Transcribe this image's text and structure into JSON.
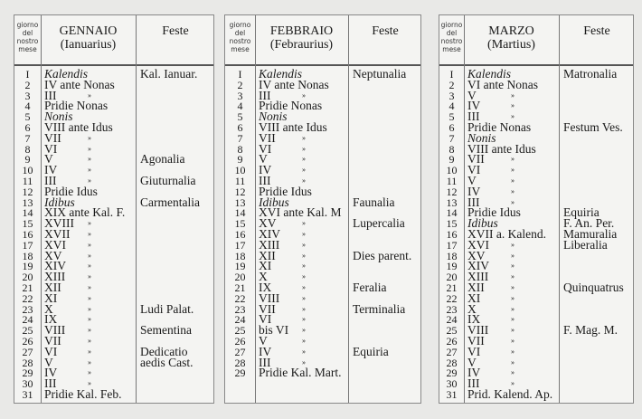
{
  "header_num_label": "giorno del nostro mese",
  "feste_label": "Feste",
  "ditto": "»",
  "months": [
    {
      "name": "GENNAIO",
      "latin": "(Ianuarius)",
      "rows": [
        [
          "I",
          "Kalendis",
          0,
          "Kal. Ianuar.",
          1
        ],
        [
          "2",
          "IV ante Nonas",
          0,
          "",
          0
        ],
        [
          "3",
          "III",
          1,
          "",
          0
        ],
        [
          "4",
          "Pridie Nonas",
          0,
          "",
          0
        ],
        [
          "5",
          "Nonis",
          0,
          "",
          1
        ],
        [
          "6",
          "VIII ante Idus",
          0,
          "",
          0
        ],
        [
          "7",
          "VII",
          1,
          "",
          0
        ],
        [
          "8",
          "VI",
          1,
          "",
          0
        ],
        [
          "9",
          "V",
          1,
          "Agonalia",
          0
        ],
        [
          "10",
          "IV",
          1,
          "",
          0
        ],
        [
          "11",
          "III",
          1,
          "Giuturnalia",
          0
        ],
        [
          "12",
          "Pridie Idus",
          0,
          "",
          0
        ],
        [
          "13",
          "Idibus",
          0,
          "Carmentalia",
          1
        ],
        [
          "14",
          "XIX ante Kal. F.",
          0,
          "",
          0
        ],
        [
          "15",
          "XVIII",
          1,
          "",
          0
        ],
        [
          "16",
          "XVII",
          1,
          "",
          0
        ],
        [
          "17",
          "XVI",
          1,
          "",
          0
        ],
        [
          "18",
          "XV",
          1,
          "",
          0
        ],
        [
          "19",
          "XIV",
          1,
          "",
          0
        ],
        [
          "20",
          "XIII",
          1,
          "",
          0
        ],
        [
          "21",
          "XII",
          1,
          "",
          0
        ],
        [
          "22",
          "XI",
          1,
          "",
          0
        ],
        [
          "23",
          "X",
          1,
          "Ludi Palat.",
          0
        ],
        [
          "24",
          "IX",
          1,
          "",
          0
        ],
        [
          "25",
          "VIII",
          1,
          "Sementina",
          0
        ],
        [
          "26",
          "VII",
          1,
          "",
          0
        ],
        [
          "27",
          "VI",
          1,
          "Dedicatio",
          0
        ],
        [
          "28",
          "V",
          1,
          "aedis Cast.",
          0
        ],
        [
          "29",
          "IV",
          1,
          "",
          0
        ],
        [
          "30",
          "III",
          1,
          "",
          0
        ],
        [
          "31",
          "Pridie Kal. Feb.",
          0,
          "",
          0
        ]
      ]
    },
    {
      "name": "FEBBRAIO",
      "latin": "(Febraurius)",
      "rows": [
        [
          "I",
          "Kalendis",
          0,
          "Neptunalia",
          1
        ],
        [
          "2",
          "IV ante Nonas",
          0,
          "",
          0
        ],
        [
          "3",
          "III",
          1,
          "",
          0
        ],
        [
          "4",
          "Pridie Nonas",
          0,
          "",
          0
        ],
        [
          "5",
          "Nonis",
          0,
          "",
          1
        ],
        [
          "6",
          "VIII ante Idus",
          0,
          "",
          0
        ],
        [
          "7",
          "VII",
          1,
          "",
          0
        ],
        [
          "8",
          "VI",
          1,
          "",
          0
        ],
        [
          "9",
          "V",
          1,
          "",
          0
        ],
        [
          "10",
          "IV",
          1,
          "",
          0
        ],
        [
          "11",
          "III",
          1,
          "",
          0
        ],
        [
          "12",
          "Pridie Idus",
          0,
          "",
          0
        ],
        [
          "13",
          "Idibus",
          0,
          "Faunalia",
          1
        ],
        [
          "14",
          "XVI ante Kal. M",
          0,
          "",
          0
        ],
        [
          "15",
          "XV",
          1,
          "Lupercalia",
          0
        ],
        [
          "16",
          "XIV",
          1,
          "",
          0
        ],
        [
          "17",
          "XIII",
          1,
          "",
          0
        ],
        [
          "18",
          "XII",
          1,
          "Dies parent.",
          0
        ],
        [
          "19",
          "XI",
          1,
          "",
          0
        ],
        [
          "20",
          "X",
          1,
          "",
          0
        ],
        [
          "21",
          "IX",
          1,
          "Feralia",
          0
        ],
        [
          "22",
          "VIII",
          1,
          "",
          0
        ],
        [
          "23",
          "VII",
          1,
          "Terminalia",
          0
        ],
        [
          "24",
          "VI",
          1,
          "",
          0
        ],
        [
          "25",
          "bis VI",
          1,
          "",
          0
        ],
        [
          "26",
          "V",
          1,
          "",
          0
        ],
        [
          "27",
          "IV",
          1,
          "Equiria",
          0
        ],
        [
          "28",
          "III",
          1,
          "",
          0
        ],
        [
          "29",
          "Pridie Kal. Mart.",
          0,
          "",
          0
        ]
      ]
    },
    {
      "name": "MARZO",
      "latin": "(Martius)",
      "rows": [
        [
          "I",
          "Kalendis",
          0,
          "Matronalia",
          1
        ],
        [
          "2",
          "VI ante Nonas",
          0,
          "",
          0
        ],
        [
          "3",
          "V",
          1,
          "",
          0
        ],
        [
          "4",
          "IV",
          1,
          "",
          0
        ],
        [
          "5",
          "III",
          1,
          "",
          0
        ],
        [
          "6",
          "Pridie Nonas",
          0,
          "Festum Ves.",
          0
        ],
        [
          "7",
          "Nonis",
          0,
          "",
          1
        ],
        [
          "8",
          "VIII ante Idus",
          0,
          "",
          0
        ],
        [
          "9",
          "VII",
          1,
          "",
          0
        ],
        [
          "10",
          "VI",
          1,
          "",
          0
        ],
        [
          "11",
          "V",
          1,
          "",
          0
        ],
        [
          "12",
          "IV",
          1,
          "",
          0
        ],
        [
          "13",
          "III",
          1,
          "",
          0
        ],
        [
          "14",
          "Pridie Idus",
          0,
          "Equiria",
          0
        ],
        [
          "15",
          "Idibus",
          0,
          "F. An. Per.",
          1
        ],
        [
          "16",
          "XVII a. Kalend.",
          0,
          "Mamuralia",
          0
        ],
        [
          "17",
          "XVI",
          1,
          "Liberalia",
          0
        ],
        [
          "18",
          "XV",
          1,
          "",
          0
        ],
        [
          "19",
          "XIV",
          1,
          "",
          0
        ],
        [
          "20",
          "XIII",
          1,
          "",
          0
        ],
        [
          "21",
          "XII",
          1,
          "Quinquatrus",
          0
        ],
        [
          "22",
          "XI",
          1,
          "",
          0
        ],
        [
          "23",
          "X",
          1,
          "",
          0
        ],
        [
          "24",
          "IX",
          1,
          "",
          0
        ],
        [
          "25",
          "VIII",
          1,
          "F. Mag. M.",
          0
        ],
        [
          "26",
          "VII",
          1,
          "",
          0
        ],
        [
          "27",
          "VI",
          1,
          "",
          0
        ],
        [
          "28",
          "V",
          1,
          "",
          0
        ],
        [
          "29",
          "IV",
          1,
          "",
          0
        ],
        [
          "30",
          "III",
          1,
          "",
          0
        ],
        [
          "31",
          "Prid. Kalend. Ap.",
          0,
          "",
          0
        ]
      ]
    }
  ]
}
